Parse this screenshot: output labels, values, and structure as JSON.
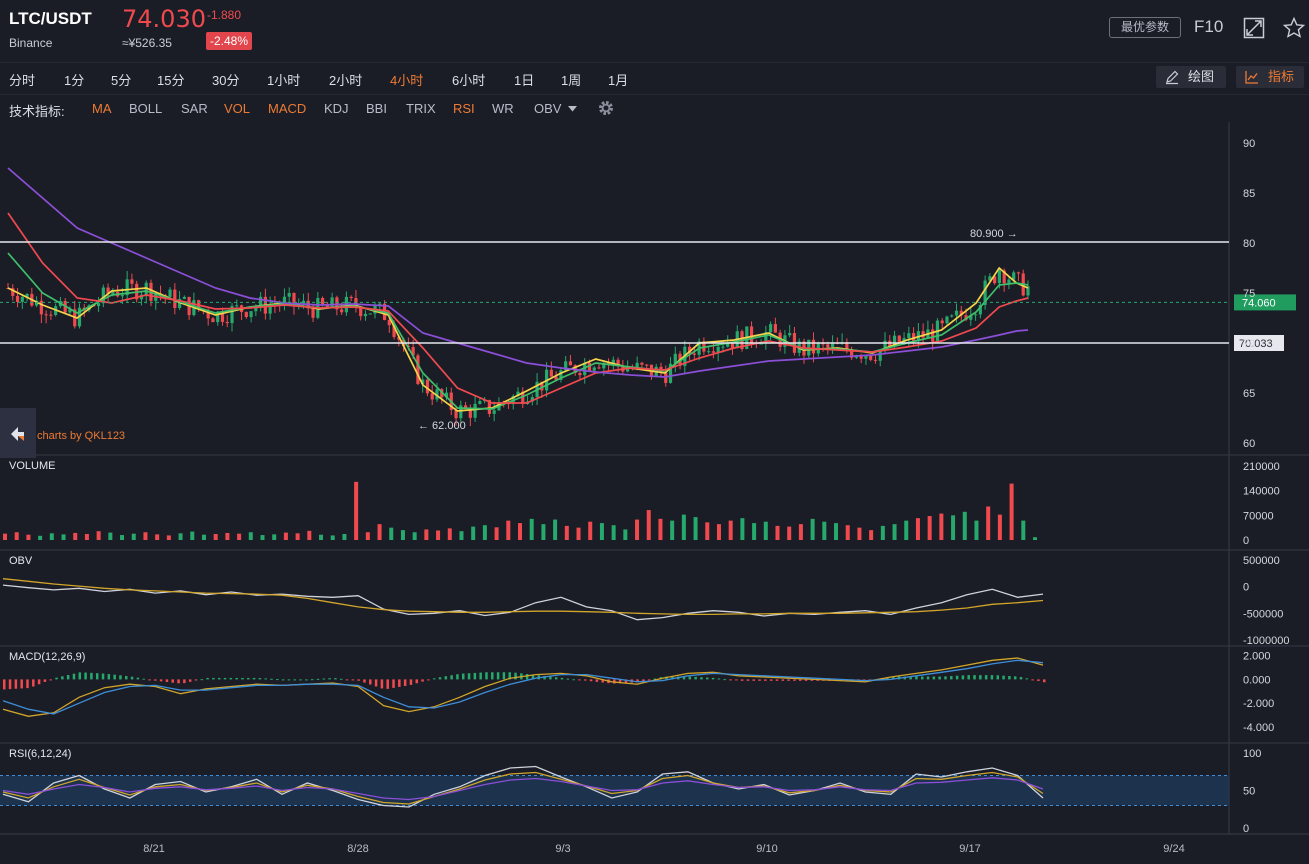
{
  "header": {
    "pair": "LTC/USDT",
    "exchange": "Binance",
    "price": "74.030",
    "change": "-1.880",
    "cny_price": "≈¥526.35",
    "change_pct": "-2.48%",
    "optimal_params_label": "最优参数",
    "f10_label": "F10",
    "colors": {
      "down": "#f04a4f",
      "up": "#26a96c",
      "accent": "#ee7b34"
    },
    "icons": [
      "fullscreen-icon",
      "star-icon"
    ]
  },
  "timeframes": [
    "分时",
    "1分",
    "5分",
    "15分",
    "30分",
    "1小时",
    "2小时",
    "4小时",
    "6小时",
    "1日",
    "1周",
    "1月"
  ],
  "active_timeframe": "4小时",
  "tools": {
    "draw_label": "绘图",
    "indicators_label": "指标",
    "icons": [
      "pencil-icon",
      "line-chart-icon"
    ]
  },
  "indicator_bar": {
    "label": "技术指标:",
    "items": [
      {
        "name": "MA",
        "active": true
      },
      {
        "name": "BOLL",
        "active": false
      },
      {
        "name": "SAR",
        "active": false
      },
      {
        "name": "VOL",
        "active": true
      },
      {
        "name": "MACD",
        "active": true
      },
      {
        "name": "KDJ",
        "active": false
      },
      {
        "name": "BBI",
        "active": false
      },
      {
        "name": "TRIX",
        "active": false
      },
      {
        "name": "RSI",
        "active": true
      },
      {
        "name": "WR",
        "active": false
      },
      {
        "name": "OBV",
        "active": false
      }
    ],
    "settings_icon": "gear-icon"
  },
  "watermark": "charts by QKL123",
  "chart_data": [
    {
      "type": "candlestick",
      "panel": "price",
      "x_ticks": [
        "8/21",
        "8/28",
        "9/3",
        "9/10",
        "9/17",
        "9/24"
      ],
      "y_ticks": [
        90,
        85,
        80,
        75,
        70,
        65,
        60
      ],
      "ylim": [
        60,
        90
      ],
      "high_label": "80.900",
      "low_label": "62.000",
      "current_price_label": "74.060",
      "hline_label": "70.033",
      "hlines": [
        80.1,
        70.0
      ],
      "ma_series": [
        {
          "color": "#f5d54a",
          "points": [
            [
              0,
              75.5
            ],
            [
              0.03,
              73.8
            ],
            [
              0.06,
              72.5
            ],
            [
              0.09,
              75.2
            ],
            [
              0.12,
              75.5
            ],
            [
              0.15,
              74
            ],
            [
              0.18,
              72.8
            ],
            [
              0.21,
              73.6
            ],
            [
              0.24,
              74
            ],
            [
              0.27,
              73.4
            ],
            [
              0.3,
              73.8
            ],
            [
              0.33,
              72.8
            ],
            [
              0.36,
              65.8
            ],
            [
              0.39,
              63.2
            ],
            [
              0.42,
              63.5
            ],
            [
              0.45,
              65.2
            ],
            [
              0.48,
              67
            ],
            [
              0.51,
              68.4
            ],
            [
              0.54,
              67.5
            ],
            [
              0.57,
              67
            ],
            [
              0.6,
              70
            ],
            [
              0.63,
              70.3
            ],
            [
              0.66,
              71
            ],
            [
              0.69,
              69.3
            ],
            [
              0.72,
              69.5
            ],
            [
              0.75,
              69
            ],
            [
              0.78,
              70.3
            ],
            [
              0.81,
              71.3
            ],
            [
              0.84,
              74
            ],
            [
              0.86,
              77.5
            ],
            [
              0.875,
              76
            ],
            [
              0.885,
              75.5
            ]
          ]
        },
        {
          "color": "#3fbf6a",
          "points": [
            [
              0,
              79
            ],
            [
              0.03,
              75
            ],
            [
              0.06,
              73
            ],
            [
              0.09,
              74.8
            ],
            [
              0.12,
              75.2
            ],
            [
              0.15,
              74.1
            ],
            [
              0.18,
              73
            ],
            [
              0.21,
              73.6
            ],
            [
              0.24,
              73.9
            ],
            [
              0.27,
              73.5
            ],
            [
              0.3,
              73.7
            ],
            [
              0.33,
              73
            ],
            [
              0.36,
              67
            ],
            [
              0.39,
              63.5
            ],
            [
              0.42,
              63.4
            ],
            [
              0.45,
              64.8
            ],
            [
              0.48,
              66.5
            ],
            [
              0.51,
              68
            ],
            [
              0.54,
              67.6
            ],
            [
              0.57,
              67.2
            ],
            [
              0.6,
              69.5
            ],
            [
              0.63,
              70.1
            ],
            [
              0.66,
              70.8
            ],
            [
              0.69,
              69.4
            ],
            [
              0.72,
              69.4
            ],
            [
              0.75,
              69.1
            ],
            [
              0.78,
              70
            ],
            [
              0.81,
              70.8
            ],
            [
              0.84,
              73.1
            ],
            [
              0.86,
              75.8
            ],
            [
              0.875,
              76
            ],
            [
              0.885,
              75.8
            ]
          ]
        },
        {
          "color": "#f04a4f",
          "points": [
            [
              0,
              83
            ],
            [
              0.03,
              78
            ],
            [
              0.06,
              74.5
            ],
            [
              0.09,
              74
            ],
            [
              0.12,
              74.8
            ],
            [
              0.15,
              74.2
            ],
            [
              0.18,
              73.4
            ],
            [
              0.21,
              73.5
            ],
            [
              0.24,
              73.8
            ],
            [
              0.27,
              73.5
            ],
            [
              0.3,
              73.6
            ],
            [
              0.33,
              73.2
            ],
            [
              0.36,
              69.5
            ],
            [
              0.39,
              65.5
            ],
            [
              0.42,
              64
            ],
            [
              0.45,
              64
            ],
            [
              0.48,
              65.5
            ],
            [
              0.51,
              67
            ],
            [
              0.54,
              67.5
            ],
            [
              0.57,
              67.3
            ],
            [
              0.6,
              68.5
            ],
            [
              0.63,
              69.5
            ],
            [
              0.66,
              70.2
            ],
            [
              0.69,
              69.5
            ],
            [
              0.72,
              69.3
            ],
            [
              0.75,
              69.1
            ],
            [
              0.78,
              69.6
            ],
            [
              0.81,
              70.2
            ],
            [
              0.84,
              71.5
            ],
            [
              0.86,
              73.6
            ],
            [
              0.875,
              74.2
            ],
            [
              0.885,
              74.5
            ]
          ]
        },
        {
          "color": "#8b4fd8",
          "points": [
            [
              0,
              87.5
            ],
            [
              0.03,
              84.5
            ],
            [
              0.06,
              81.5
            ],
            [
              0.09,
              80
            ],
            [
              0.12,
              78.5
            ],
            [
              0.15,
              77
            ],
            [
              0.18,
              75.5
            ],
            [
              0.21,
              74.5
            ],
            [
              0.24,
              74
            ],
            [
              0.27,
              73.8
            ],
            [
              0.3,
              73.9
            ],
            [
              0.33,
              73.7
            ],
            [
              0.36,
              71
            ],
            [
              0.39,
              70
            ],
            [
              0.42,
              69
            ],
            [
              0.45,
              68
            ],
            [
              0.48,
              67.5
            ],
            [
              0.51,
              67.1
            ],
            [
              0.54,
              66.8
            ],
            [
              0.57,
              66.6
            ],
            [
              0.6,
              67.2
            ],
            [
              0.63,
              67.7
            ],
            [
              0.66,
              68.2
            ],
            [
              0.69,
              68.4
            ],
            [
              0.72,
              68.6
            ],
            [
              0.75,
              68.8
            ],
            [
              0.78,
              69.2
            ],
            [
              0.81,
              69.6
            ],
            [
              0.84,
              70.3
            ],
            [
              0.86,
              70.8
            ],
            [
              0.875,
              71.2
            ],
            [
              0.885,
              71.3
            ]
          ]
        }
      ]
    },
    {
      "type": "bar",
      "panel": "volume",
      "title": "VOLUME",
      "y_ticks": [
        210000,
        140000,
        70000,
        0
      ],
      "ylim": [
        0,
        210000
      ],
      "values": [
        18000,
        22000,
        15000,
        12000,
        19000,
        16000,
        20000,
        17000,
        25000,
        21000,
        14000,
        18000,
        22000,
        16000,
        13000,
        19000,
        24000,
        15000,
        17000,
        20000,
        18000,
        22000,
        14000,
        16000,
        21000,
        19000,
        26000,
        15000,
        13000,
        17000,
        165000,
        22000,
        45000,
        35000,
        28000,
        22000,
        30000,
        27000,
        33000,
        25000,
        38000,
        42000,
        36000,
        55000,
        48000,
        60000,
        45000,
        58000,
        40000,
        35000,
        52000,
        48000,
        42000,
        30000,
        58000,
        85000,
        60000,
        55000,
        72000,
        65000,
        50000,
        45000,
        55000,
        62000,
        48000,
        52000,
        40000,
        38000,
        45000,
        60000,
        52000,
        48000,
        42000,
        35000,
        28000,
        40000,
        45000,
        55000,
        62000,
        68000,
        75000,
        70000,
        80000,
        55000,
        95000,
        72000,
        160000,
        55000,
        8000
      ],
      "colors_cycle": [
        "#f04a4f",
        "#26a96c"
      ]
    },
    {
      "type": "line",
      "panel": "obv",
      "title": "OBV",
      "y_ticks": [
        "500000",
        "0",
        "-500000",
        "-1000000"
      ],
      "ylim": [
        -1000000,
        500000
      ],
      "series": [
        {
          "color": "#cfd2da",
          "values": [
            30000,
            -20000,
            -60000,
            -30000,
            -90000,
            -50000,
            -120000,
            -80000,
            -150000,
            -100000,
            -160000,
            -140000,
            -180000,
            -200000,
            -170000,
            -420000,
            -520000,
            -500000,
            -450000,
            -540000,
            -480000,
            -300000,
            -200000,
            -380000,
            -450000,
            -620000,
            -580000,
            -500000,
            -450000,
            -480000,
            -550000,
            -500000,
            -520000,
            -480000,
            -450000,
            -520000,
            -400000,
            -300000,
            -150000,
            -50000,
            -200000,
            -140000
          ]
        },
        {
          "color": "#d1a52a",
          "values": [
            150000,
            100000,
            50000,
            10000,
            -30000,
            -60000,
            -80000,
            -100000,
            -120000,
            -130000,
            -140000,
            -160000,
            -220000,
            -300000,
            -380000,
            -430000,
            -460000,
            -470000,
            -480000,
            -480000,
            -470000,
            -460000,
            -460000,
            -470000,
            -480000,
            -500000,
            -510000,
            -520000,
            -520000,
            -510000,
            -510000,
            -500000,
            -500000,
            -500000,
            -490000,
            -480000,
            -470000,
            -440000,
            -400000,
            -330000,
            -300000,
            -260000
          ]
        }
      ]
    },
    {
      "type": "line",
      "panel": "macd",
      "title": "MACD(12,26,9)",
      "y_ticks": [
        "2.000",
        "0.000",
        "-2.000",
        "-4.000"
      ],
      "ylim": [
        -4.5,
        2.3
      ],
      "series": [
        {
          "color": "#d1a52a",
          "values": [
            -2.5,
            -3.1,
            -2.8,
            -1.5,
            -0.7,
            -0.4,
            -0.6,
            -1.2,
            -0.8,
            -0.6,
            -0.4,
            -0.5,
            -0.4,
            -0.3,
            -0.6,
            -2.2,
            -2.7,
            -2.3,
            -1.5,
            -0.6,
            0.1,
            0.4,
            0.5,
            0.3,
            -0.2,
            -0.4,
            0.1,
            0.5,
            0.6,
            0.3,
            0.2,
            0.1,
            0,
            -0.1,
            -0.2,
            0.2,
            0.5,
            0.8,
            1.2,
            1.6,
            1.8,
            1.2
          ]
        },
        {
          "color": "#3d8ed9",
          "values": [
            -1.8,
            -2.5,
            -2.9,
            -2,
            -1.1,
            -0.6,
            -0.5,
            -0.9,
            -0.9,
            -0.7,
            -0.5,
            -0.5,
            -0.4,
            -0.4,
            -0.5,
            -1.5,
            -2.3,
            -2.4,
            -1.9,
            -1.1,
            -0.4,
            0.1,
            0.4,
            0.4,
            0.1,
            -0.2,
            -0.1,
            0.3,
            0.5,
            0.4,
            0.3,
            0.2,
            0.1,
            0,
            -0.1,
            0,
            0.3,
            0.6,
            0.9,
            1.3,
            1.6,
            1.4
          ]
        }
      ]
    },
    {
      "type": "line",
      "panel": "rsi",
      "title": "RSI(6,12,24)",
      "y_ticks": [
        100,
        50,
        0
      ],
      "ylim": [
        0,
        100
      ],
      "band": [
        30,
        70
      ],
      "series": [
        {
          "color": "#cfd2da",
          "values": [
            45,
            35,
            60,
            70,
            52,
            40,
            58,
            62,
            48,
            55,
            65,
            45,
            60,
            50,
            38,
            30,
            28,
            45,
            55,
            70,
            80,
            82,
            68,
            55,
            40,
            48,
            72,
            75,
            60,
            52,
            58,
            44,
            50,
            60,
            48,
            45,
            72,
            68,
            75,
            80,
            70,
            40
          ]
        },
        {
          "color": "#d1a52a",
          "values": [
            48,
            40,
            55,
            65,
            54,
            44,
            55,
            58,
            50,
            54,
            60,
            48,
            57,
            52,
            42,
            34,
            32,
            42,
            52,
            64,
            72,
            74,
            65,
            56,
            46,
            50,
            66,
            70,
            60,
            54,
            56,
            47,
            50,
            57,
            50,
            48,
            66,
            65,
            70,
            74,
            68,
            46
          ]
        },
        {
          "color": "#8b4fd8",
          "values": [
            50,
            45,
            52,
            58,
            54,
            48,
            53,
            55,
            51,
            53,
            56,
            50,
            54,
            52,
            46,
            40,
            38,
            42,
            50,
            58,
            64,
            66,
            62,
            56,
            50,
            51,
            60,
            63,
            58,
            54,
            55,
            50,
            51,
            55,
            51,
            50,
            60,
            61,
            64,
            67,
            64,
            52
          ]
        }
      ]
    }
  ]
}
